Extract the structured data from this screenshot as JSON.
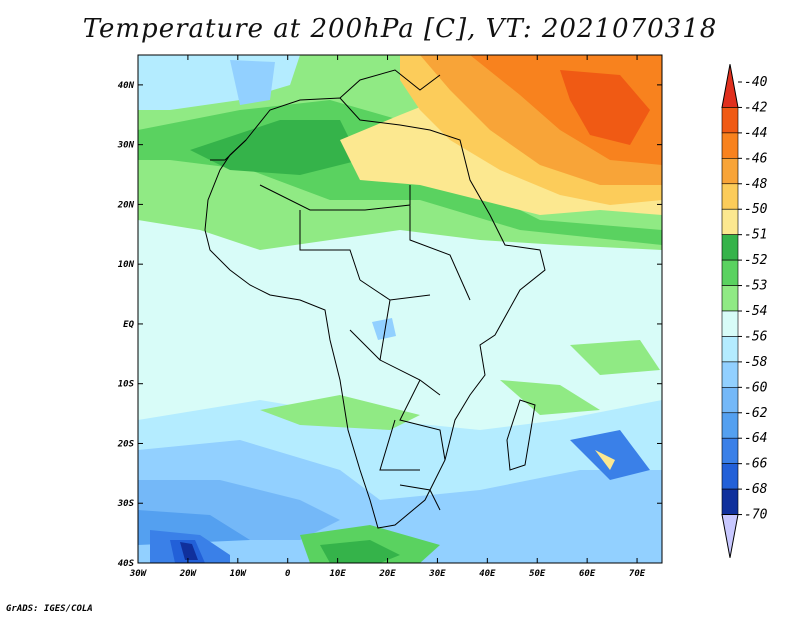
{
  "title": "Temperature at 200hPa [C], VT: 2021070318",
  "credit": "GrADS: IGES/COLA",
  "map": {
    "lon_range": [
      -30,
      75
    ],
    "lat_range": [
      -40,
      45
    ],
    "x_ticks": [
      "30W",
      "20W",
      "10W",
      "0",
      "10E",
      "20E",
      "30E",
      "40E",
      "50E",
      "60E",
      "70E"
    ],
    "y_ticks": [
      "40N",
      "30N",
      "20N",
      "10N",
      "EQ",
      "10S",
      "20S",
      "30S",
      "40S"
    ]
  },
  "colorbar": {
    "labels": [
      "-40",
      "-42",
      "-44",
      "-46",
      "-48",
      "-50",
      "-51",
      "-52",
      "-53",
      "-54",
      "-56",
      "-58",
      "-60",
      "-62",
      "-64",
      "-66",
      "-68",
      "-70"
    ],
    "colors": [
      "#e0301e",
      "#f05a14",
      "#f8821e",
      "#f8a438",
      "#fccc5a",
      "#fce890",
      "#35b34a",
      "#5ad260",
      "#90ea84",
      "#d8fcf8",
      "#b4ecff",
      "#92d0ff",
      "#74b8f8",
      "#54a0f0",
      "#3a80e8",
      "#2260d8",
      "#10309c",
      "#c8c8ff"
    ]
  }
}
